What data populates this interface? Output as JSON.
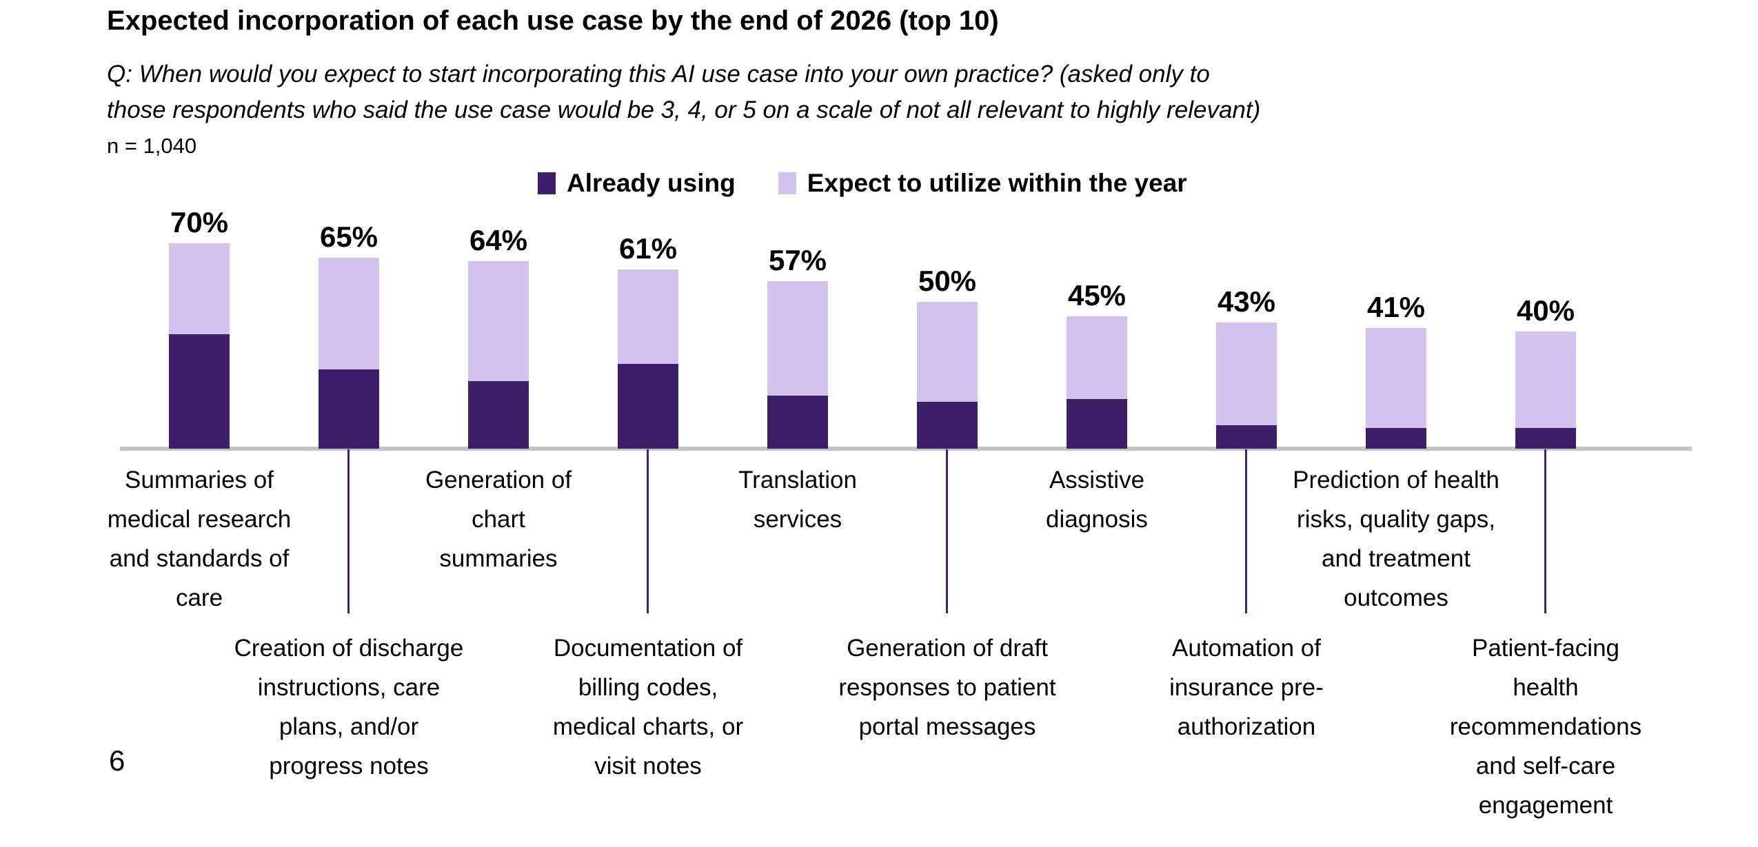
{
  "header": {
    "title": "Expected incorporation of each use case by the end of 2026 (top 10)",
    "subtitle": "Q: When would you expect to start incorporating this AI use case into your own practice? (asked only to\nthose respondents who said the use case would be 3, 4, or 5 on a scale of not all relevant to highly relevant)",
    "sample_note": "n = 1,040"
  },
  "chart_data": {
    "type": "bar",
    "stacked": true,
    "title": "Expected incorporation of each use case by the end of 2026 (top 10)",
    "categories": [
      "Summaries of\nmedical research\nand standards of\ncare",
      "Creation of discharge\ninstructions, care\nplans, and/or\nprogress notes",
      "Generation of\nchart\nsummaries",
      "Documentation of\nbilling codes,\nmedical charts, or\nvisit notes",
      "Translation\nservices",
      "Generation of draft\nresponses to patient\nportal messages",
      "Assistive\ndiagnosis",
      "Automation of\ninsurance pre-\nauthorization",
      "Prediction of health\nrisks, quality gaps,\nand treatment\noutcomes",
      "Patient-facing\nhealth\nrecommendations\nand self-care\nengagement"
    ],
    "series": [
      {
        "name": "Already using",
        "color": "#3D1F68",
        "values": [
          39,
          27,
          23,
          29,
          18,
          16,
          17,
          8,
          7,
          7
        ]
      },
      {
        "name": "Expect to utilize within the year",
        "color": "#D1C3EE",
        "values": [
          31,
          38,
          41,
          32,
          39,
          34,
          28,
          35,
          34,
          33
        ]
      }
    ],
    "totals": [
      70,
      65,
      64,
      61,
      57,
      50,
      45,
      43,
      41,
      40
    ],
    "data_labels": [
      "70%",
      "65%",
      "64%",
      "61%",
      "57%",
      "50%",
      "45%",
      "43%",
      "41%",
      "40%"
    ],
    "xlabel": "",
    "ylabel": "",
    "ylim": [
      0,
      100
    ],
    "grid": false,
    "value_axis_hidden": true,
    "legend_position": "top",
    "colors": {
      "bar_dark": "#3D1F68",
      "bar_light": "#D1C3EE",
      "tick_line": "#3F2170",
      "axis_line": "#C3C3C3"
    }
  },
  "footer": {
    "page_number": "6"
  }
}
